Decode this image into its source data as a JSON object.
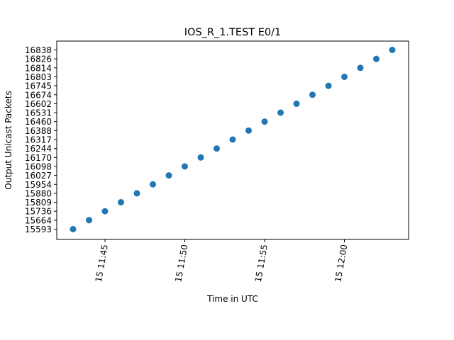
{
  "chart_data": {
    "type": "scatter",
    "title": "IOS_R_1.TEST E0/1",
    "xlabel": "Time in UTC",
    "ylabel": "Output Unicast Packets",
    "x_tick_labels": [
      "15 11:45",
      "15 11:50",
      "15 11:55",
      "15 12:00"
    ],
    "y_categories": [
      "15593",
      "15664",
      "15736",
      "15809",
      "15880",
      "15954",
      "16027",
      "16098",
      "16170",
      "16244",
      "16317",
      "16388",
      "16460",
      "16531",
      "16602",
      "16674",
      "16745",
      "16803",
      "16814",
      "16826",
      "16838"
    ],
    "x": [
      "15 11:43",
      "15 11:44",
      "15 11:45",
      "15 11:46",
      "15 11:47",
      "15 11:48",
      "15 11:49",
      "15 11:50",
      "15 11:51",
      "15 11:52",
      "15 11:53",
      "15 11:54",
      "15 11:55",
      "15 11:56",
      "15 11:57",
      "15 11:58",
      "15 11:59",
      "15 12:00",
      "15 12:01",
      "15 12:02",
      "15 12:03"
    ],
    "y": [
      "15593",
      "15664",
      "15736",
      "15809",
      "15880",
      "15954",
      "16027",
      "16098",
      "16170",
      "16244",
      "16317",
      "16388",
      "16460",
      "16531",
      "16602",
      "16674",
      "16745",
      "16803",
      "16814",
      "16826",
      "16838"
    ],
    "marker_color": "#1f77b4",
    "grid": false
  }
}
